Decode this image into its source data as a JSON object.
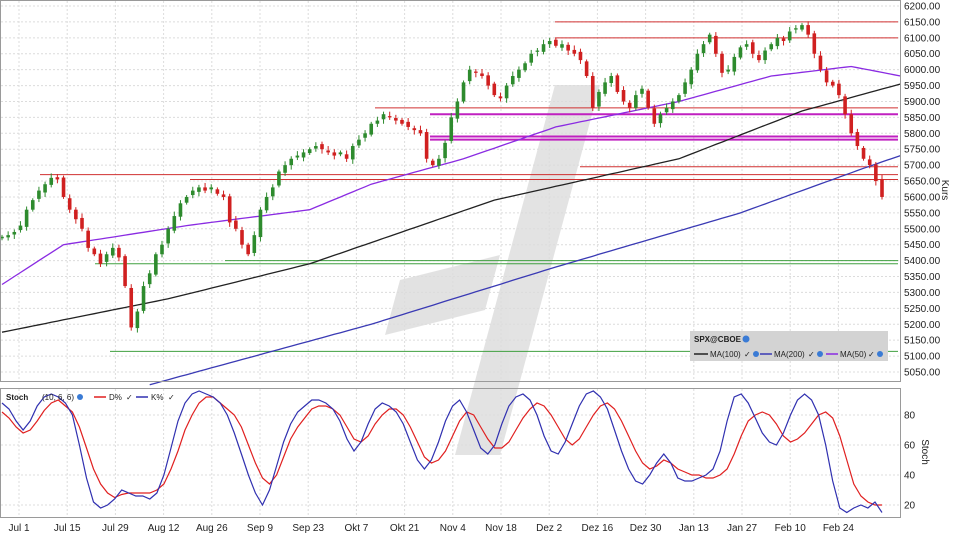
{
  "chart_data": [
    {
      "type": "candlestick",
      "symbol": "SPX@CBOE",
      "ylabel": "Kurs",
      "ylim": [
        5050,
        6200
      ],
      "y_ticks": [
        5050,
        5100,
        5150,
        5200,
        5250,
        5300,
        5350,
        5400,
        5450,
        5500,
        5550,
        5600,
        5650,
        5700,
        5750,
        5800,
        5850,
        5900,
        5950,
        6000,
        6050,
        6100,
        6150,
        6200
      ],
      "y_tick_labels": [
        "5050.00",
        "5100.00",
        "5150.00",
        "5200.00",
        "5250.00",
        "5300.00",
        "5350.00",
        "5400.00",
        "5450.00",
        "5500.00",
        "5550.00",
        "5600.00",
        "5650.00",
        "5700.00",
        "5750.00",
        "5800.00",
        "5850.00",
        "5900.00",
        "5950.00",
        "6000.00",
        "6050.00",
        "6100.00",
        "6150.00",
        "6200.00"
      ],
      "x_tick_labels": [
        "Jul 1",
        "Jul 15",
        "Jul 29",
        "Aug 12",
        "Aug 26",
        "Sep 9",
        "Sep 23",
        "Okt 7",
        "Okt 21",
        "Nov 4",
        "Nov 18",
        "Dez 2",
        "Dez 16",
        "Dez 30",
        "Jan 13",
        "Jan 27",
        "Feb 10",
        "Feb 24"
      ],
      "legend": [
        "MA(100)",
        "MA(200)",
        "MA(50)"
      ],
      "legend_colors": {
        "MA(100)": "#222222",
        "MA(200)": "#3a3ab4",
        "MA(50)": "#8a2be2"
      },
      "closes": [
        5475,
        5480,
        5490,
        5510,
        5560,
        5590,
        5620,
        5640,
        5660,
        5655,
        5600,
        5560,
        5530,
        5500,
        5440,
        5420,
        5390,
        5420,
        5440,
        5410,
        5320,
        5190,
        5240,
        5320,
        5360,
        5420,
        5450,
        5500,
        5540,
        5580,
        5600,
        5620,
        5630,
        5620,
        5630,
        5610,
        5600,
        5520,
        5500,
        5450,
        5420,
        5480,
        5560,
        5600,
        5630,
        5680,
        5700,
        5720,
        5730,
        5740,
        5750,
        5760,
        5750,
        5740,
        5730,
        5740,
        5720,
        5760,
        5780,
        5800,
        5830,
        5840,
        5860,
        5850,
        5840,
        5830,
        5820,
        5810,
        5800,
        5720,
        5700,
        5720,
        5770,
        5850,
        5900,
        5960,
        6000,
        5990,
        5980,
        5950,
        5920,
        5910,
        5950,
        5980,
        6000,
        6020,
        6050,
        6060,
        6080,
        6090,
        6075,
        6080,
        6060,
        6050,
        6030,
        5980,
        5880,
        5930,
        5960,
        5980,
        5930,
        5900,
        5880,
        5920,
        5940,
        5880,
        5830,
        5860,
        5880,
        5900,
        5920,
        5960,
        6000,
        6050,
        6080,
        6110,
        6050,
        5990,
        6000,
        6040,
        6070,
        6080,
        6050,
        6030,
        6060,
        6080,
        6100,
        6090,
        6120,
        6130,
        6140,
        6110,
        6050,
        6000,
        5960,
        5950,
        5920,
        5860,
        5800,
        5760,
        5720,
        5700,
        5650,
        5600
      ],
      "resistance_lines": [
        6150,
        6100,
        5880,
        5860,
        5790,
        5780,
        5695,
        5670,
        5655
      ],
      "support_lines": [
        5400,
        5390,
        5115
      ],
      "ma_100_anchor_values": [
        [
          0,
          5175
        ],
        [
          27,
          5280
        ],
        [
          50,
          5390
        ],
        [
          80,
          5590
        ],
        [
          110,
          5720
        ],
        [
          130,
          5870
        ],
        [
          146,
          5955
        ]
      ],
      "ma_200_anchor_values": [
        [
          24,
          5010
        ],
        [
          60,
          5200
        ],
        [
          90,
          5380
        ],
        [
          120,
          5550
        ],
        [
          140,
          5690
        ],
        [
          146,
          5730
        ]
      ],
      "ma_50_anchor_values": [
        [
          0,
          5325
        ],
        [
          10,
          5450
        ],
        [
          30,
          5510
        ],
        [
          50,
          5560
        ],
        [
          60,
          5640
        ],
        [
          75,
          5720
        ],
        [
          90,
          5820
        ],
        [
          110,
          5900
        ],
        [
          125,
          5980
        ],
        [
          138,
          6010
        ],
        [
          146,
          5980
        ]
      ]
    },
    {
      "type": "line",
      "title": "Stoch",
      "params": "(10, 6, 6)",
      "ylabel": "Stoch",
      "ylim": [
        0,
        100
      ],
      "y_ticks": [
        20,
        40,
        60,
        80
      ],
      "y_tick_labels": [
        "20",
        "40",
        "60",
        "80"
      ],
      "series": [
        {
          "name": "D%",
          "color": "#e02020",
          "values": [
            82,
            78,
            72,
            68,
            70,
            76,
            83,
            88,
            90,
            86,
            82,
            72,
            58,
            44,
            34,
            28,
            25,
            27,
            28,
            28,
            28,
            28,
            30,
            34,
            44,
            56,
            70,
            80,
            88,
            92,
            92,
            88,
            84,
            80,
            72,
            60,
            48,
            38,
            34,
            40,
            52,
            64,
            72,
            78,
            84,
            86,
            86,
            84,
            80,
            72,
            64,
            62,
            66,
            74,
            80,
            84,
            84,
            80,
            72,
            62,
            52,
            48,
            50,
            56,
            66,
            76,
            82,
            80,
            72,
            64,
            58,
            58,
            62,
            70,
            78,
            84,
            88,
            86,
            80,
            72,
            64,
            60,
            64,
            72,
            80,
            86,
            88,
            84,
            76,
            66,
            56,
            48,
            44,
            46,
            50,
            48,
            44,
            42,
            40,
            40,
            38,
            38,
            40,
            44,
            54,
            66,
            76,
            80,
            82,
            80,
            74,
            66,
            62,
            64,
            68,
            74,
            80,
            82,
            78,
            66,
            50,
            34,
            26,
            22,
            20,
            20
          ]
        },
        {
          "name": "K%",
          "color": "#3030b0",
          "values": [
            88,
            84,
            76,
            70,
            76,
            86,
            92,
            94,
            92,
            88,
            80,
            60,
            38,
            22,
            18,
            20,
            24,
            30,
            28,
            26,
            26,
            24,
            28,
            40,
            58,
            76,
            88,
            94,
            96,
            94,
            92,
            88,
            80,
            68,
            54,
            40,
            28,
            20,
            30,
            46,
            62,
            74,
            82,
            86,
            90,
            90,
            88,
            84,
            76,
            64,
            56,
            62,
            74,
            84,
            88,
            86,
            82,
            74,
            62,
            50,
            44,
            50,
            62,
            76,
            86,
            90,
            82,
            70,
            58,
            54,
            60,
            74,
            86,
            92,
            94,
            90,
            80,
            66,
            56,
            54,
            62,
            74,
            86,
            94,
            96,
            92,
            84,
            70,
            56,
            44,
            36,
            34,
            40,
            48,
            54,
            48,
            38,
            36,
            36,
            38,
            40,
            44,
            56,
            76,
            92,
            94,
            88,
            78,
            68,
            62,
            60,
            68,
            80,
            90,
            94,
            90,
            80,
            60,
            36,
            18,
            15,
            18,
            20,
            18,
            22,
            15
          ]
        }
      ]
    }
  ]
}
